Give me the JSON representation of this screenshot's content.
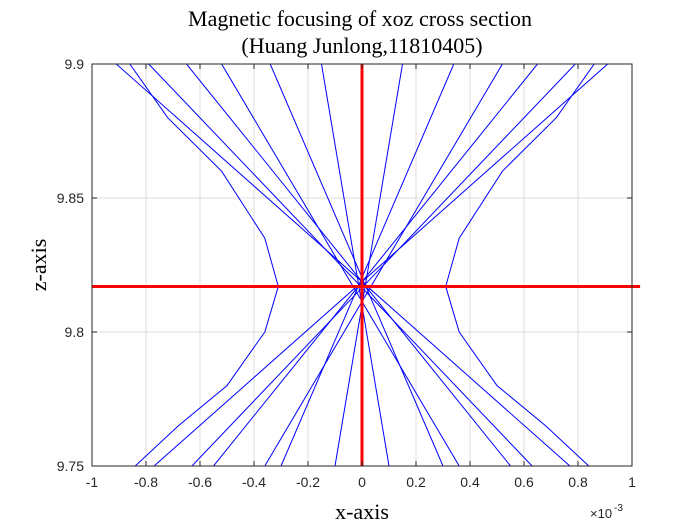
{
  "chart_data": {
    "type": "line",
    "title": [
      "Magnetic focusing of xoz cross section",
      "(Huang Junlong,11810405)"
    ],
    "xlabel": "x-axis",
    "ylabel": "z-axis",
    "x_exponent_base": "×10",
    "x_exponent_power": "-3",
    "xlim": [
      -1,
      1
    ],
    "ylim": [
      9.75,
      9.9
    ],
    "grid": true,
    "x_ticks": [
      -1,
      -0.8,
      -0.6,
      -0.4,
      -0.2,
      0,
      0.2,
      0.4,
      0.6,
      0.8,
      1
    ],
    "x_tick_labels": [
      "-1",
      "-0.8",
      "-0.6",
      "-0.4",
      "-0.2",
      "0",
      "0.2",
      "0.4",
      "0.6",
      "0.8",
      "1"
    ],
    "y_ticks": [
      9.75,
      9.8,
      9.85,
      9.9
    ],
    "y_tick_labels": [
      "9.75",
      "9.8",
      "9.85",
      "9.9"
    ],
    "line_color": "#0000ff",
    "marker_color": "#ff0000",
    "series": [
      {
        "x": [
          -0.91,
          0.77
        ],
        "y": [
          9.9,
          9.75
        ]
      },
      {
        "x": [
          -0.79,
          0.63
        ],
        "y": [
          9.9,
          9.75
        ]
      },
      {
        "x": [
          -0.65,
          0.55
        ],
        "y": [
          9.9,
          9.75
        ]
      },
      {
        "x": [
          -0.52,
          0.36
        ],
        "y": [
          9.9,
          9.75
        ]
      },
      {
        "x": [
          -0.34,
          0.3
        ],
        "y": [
          9.9,
          9.75
        ]
      },
      {
        "x": [
          -0.15,
          0.1
        ],
        "y": [
          9.9,
          9.75
        ]
      },
      {
        "x": [
          0.91,
          -0.77
        ],
        "y": [
          9.9,
          9.75
        ]
      },
      {
        "x": [
          0.79,
          -0.63
        ],
        "y": [
          9.9,
          9.75
        ]
      },
      {
        "x": [
          0.65,
          -0.55
        ],
        "y": [
          9.9,
          9.75
        ]
      },
      {
        "x": [
          0.52,
          -0.36
        ],
        "y": [
          9.9,
          9.75
        ]
      },
      {
        "x": [
          0.34,
          -0.3
        ],
        "y": [
          9.9,
          9.75
        ]
      },
      {
        "x": [
          0.15,
          -0.1
        ],
        "y": [
          9.9,
          9.75
        ]
      },
      {
        "x": [
          -0.86,
          -0.72,
          -0.52,
          -0.36,
          -0.31,
          -0.36,
          -0.5,
          -0.68,
          -0.84
        ],
        "y": [
          9.9,
          9.88,
          9.86,
          9.835,
          9.817,
          9.8,
          9.78,
          9.765,
          9.75
        ]
      },
      {
        "x": [
          0.86,
          0.72,
          0.52,
          0.36,
          0.31,
          0.36,
          0.5,
          0.68,
          0.84
        ],
        "y": [
          9.9,
          9.88,
          9.86,
          9.835,
          9.817,
          9.8,
          9.78,
          9.765,
          9.75
        ]
      }
    ],
    "markers": {
      "vertical": {
        "x": 0,
        "y": [
          9.75,
          9.9
        ]
      },
      "horizontal": {
        "y": 9.817,
        "x": [
          -1,
          1.03
        ]
      }
    }
  }
}
